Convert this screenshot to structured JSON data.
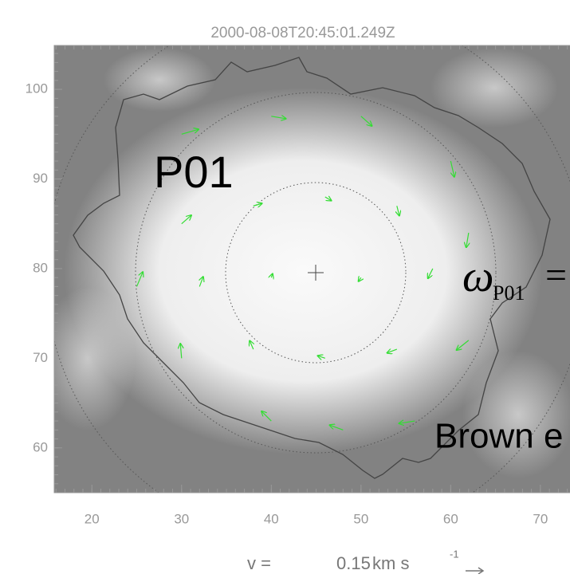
{
  "chart_data": {
    "type": "quiver",
    "title": "2000-08-08T20:45:01.249Z",
    "region_label": "P01",
    "omega_symbol": "ω",
    "omega_subscript": "P01",
    "equals_sign": "=",
    "side_text": "Brown e",
    "reference_prefix": "v =",
    "reference_value": 0.15,
    "reference_unit": "km s",
    "reference_unit_exponent": "-1",
    "color": "#33dd33",
    "x": [
      30,
      40,
      50,
      60,
      30,
      38,
      46,
      54,
      62,
      25,
      32,
      40,
      50,
      58,
      30,
      38,
      46,
      54,
      62,
      40,
      48,
      56
    ],
    "y": [
      95,
      97,
      97,
      92,
      85,
      87,
      88,
      87,
      84,
      78,
      78,
      79,
      79,
      80,
      70,
      71,
      70,
      71,
      72,
      63,
      62,
      63
    ],
    "u": [
      0.14,
      0.12,
      0.09,
      0.03,
      0.08,
      0.07,
      0.05,
      0.02,
      -0.02,
      0.05,
      0.03,
      0.01,
      -0.02,
      -0.04,
      -0.01,
      -0.03,
      -0.06,
      -0.08,
      -0.1,
      -0.08,
      -0.11,
      -0.13
    ],
    "v": [
      0.04,
      -0.02,
      -0.08,
      -0.13,
      0.07,
      0.02,
      -0.03,
      -0.08,
      -0.12,
      0.12,
      0.08,
      0.03,
      -0.03,
      -0.08,
      0.12,
      0.07,
      0.02,
      -0.03,
      -0.08,
      0.08,
      0.04,
      -0.02
    ],
    "xlim": [
      15.8,
      73.3
    ],
    "ylim": [
      55,
      104.9
    ],
    "xticks": [
      20,
      30,
      40,
      50,
      60,
      70
    ],
    "yticks": [
      60,
      70,
      80,
      90,
      100
    ]
  }
}
